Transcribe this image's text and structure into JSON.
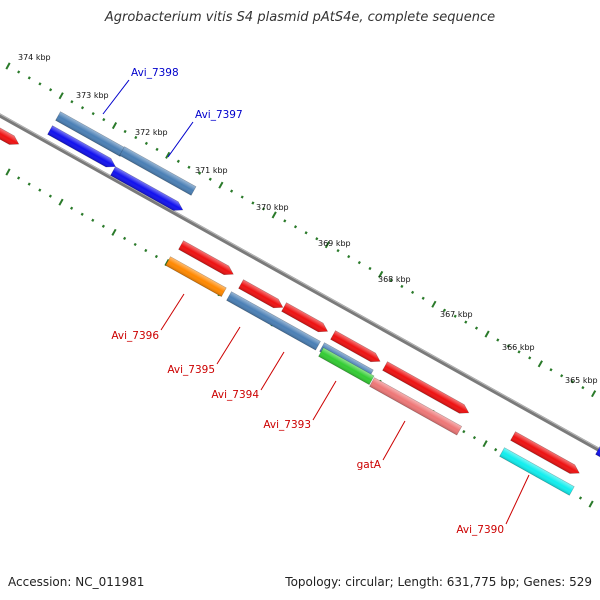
{
  "title": "Agrobacterium vitis S4 plasmid pAtS4e, complete sequence",
  "footer": {
    "accession": "Accession: NC_011981",
    "summary": "Topology: circular; Length: 631,775 bp; Genes: 529"
  },
  "ticks": [
    {
      "label": "374 kbp",
      "kbp": 374
    },
    {
      "label": "373 kbp",
      "kbp": 373
    },
    {
      "label": "372 kbp",
      "kbp": 372
    },
    {
      "label": "371 kbp",
      "kbp": 371
    },
    {
      "label": "370 kbp",
      "kbp": 370
    },
    {
      "label": "369 kbp",
      "kbp": 369
    },
    {
      "label": "368 kbp",
      "kbp": 368
    },
    {
      "label": "367 kbp",
      "kbp": 367
    },
    {
      "label": "366 kbp",
      "kbp": 366
    },
    {
      "label": "365 kbp",
      "kbp": 365
    }
  ],
  "gene_labels": [
    {
      "label": "Avi_7398",
      "color": "#0000cc"
    },
    {
      "label": "Avi_7397",
      "color": "#0000cc"
    },
    {
      "label": "Avi_7396",
      "color": "#cc0000"
    },
    {
      "label": "Avi_7395",
      "color": "#cc0000"
    },
    {
      "label": "Avi_7394",
      "color": "#cc0000"
    },
    {
      "label": "Avi_7393",
      "color": "#cc0000"
    },
    {
      "label": "gatA",
      "color": "#cc0000"
    },
    {
      "label": "Avi_7390",
      "color": "#cc0000"
    }
  ],
  "colors": {
    "backbone": "#888888",
    "tick": "#2a7a2a",
    "red": "#ee1111",
    "blue": "#1111ee",
    "steelblue": "#4a7fb5",
    "orange": "#ff8800",
    "green": "#33cc33",
    "pink": "#ee7777",
    "cyan": "#11eeee"
  }
}
